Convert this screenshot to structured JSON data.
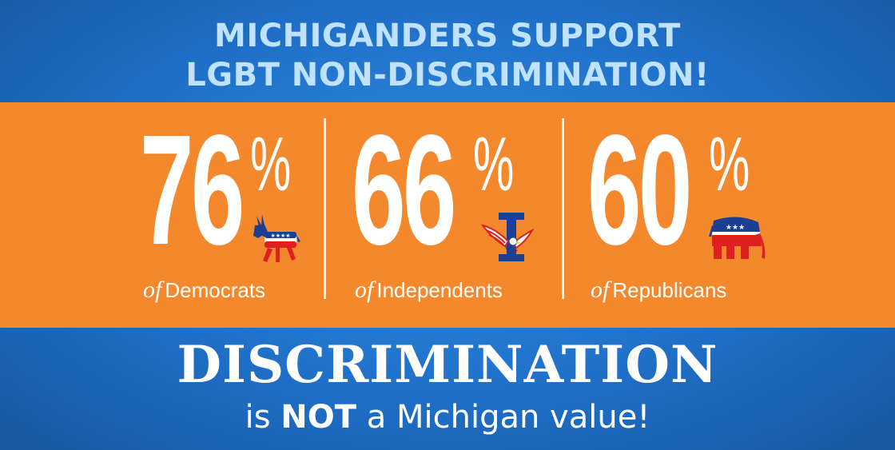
{
  "header": {
    "line1": "MICHIGANDERS SUPPORT",
    "line2": "LGBT NON-DISCRIMINATION!"
  },
  "stats": [
    {
      "value": "76",
      "percent": "%",
      "of": "of",
      "group": "Democrats",
      "icon": "donkey-icon"
    },
    {
      "value": "66",
      "percent": "%",
      "of": "of",
      "group": "Independents",
      "icon": "independent-eagle-icon"
    },
    {
      "value": "60",
      "percent": "%",
      "of": "of",
      "group": "Republicans",
      "icon": "elephant-icon"
    }
  ],
  "footer": {
    "title": "DISCRIMINATION",
    "sub_pre": "is ",
    "sub_bold": "NOT",
    "sub_post": " a Michigan value!"
  },
  "colors": {
    "blue": "#1f6fc8",
    "orange": "#f4882c",
    "headline": "#bfe3ff",
    "party_red": "#e02020",
    "party_blue": "#1c3f94"
  }
}
